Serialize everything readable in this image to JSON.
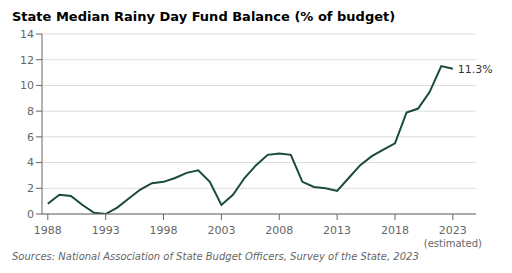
{
  "chart_data": {
    "type": "line",
    "title": "State Median Rainy Day Fund Balance (% of budget)",
    "x": [
      1988,
      1989,
      1990,
      1991,
      1992,
      1993,
      1994,
      1995,
      1996,
      1997,
      1998,
      1999,
      2000,
      2001,
      2002,
      2003,
      2004,
      2005,
      2006,
      2007,
      2008,
      2009,
      2010,
      2011,
      2012,
      2013,
      2014,
      2015,
      2016,
      2017,
      2018,
      2019,
      2020,
      2021,
      2022,
      2023
    ],
    "values": [
      0.8,
      1.5,
      1.4,
      0.7,
      0.1,
      0.0,
      0.5,
      1.2,
      1.9,
      2.4,
      2.5,
      2.8,
      3.2,
      3.4,
      2.5,
      0.7,
      1.5,
      2.8,
      3.8,
      4.6,
      4.7,
      4.6,
      2.5,
      2.1,
      2.0,
      1.8,
      2.8,
      3.8,
      4.5,
      5.0,
      5.5,
      7.9,
      8.2,
      9.5,
      11.5,
      11.3
    ],
    "color": "#1a4a3a",
    "xlim": [
      1987.5,
      2025
    ],
    "ylim": [
      0,
      14
    ],
    "xticks": [
      1988,
      1993,
      1998,
      2003,
      2008,
      2013,
      2018,
      2023
    ],
    "yticks": [
      0,
      2,
      4,
      6,
      8,
      10,
      12,
      14
    ],
    "grid": true,
    "annotations": [
      {
        "text": "11.3%",
        "x": 2023,
        "y": 11.3
      },
      {
        "text": "(estimated)",
        "x": 2023
      }
    ],
    "source": "Sources: National Association of State Budget Officers, Survey of the State, 2023"
  }
}
